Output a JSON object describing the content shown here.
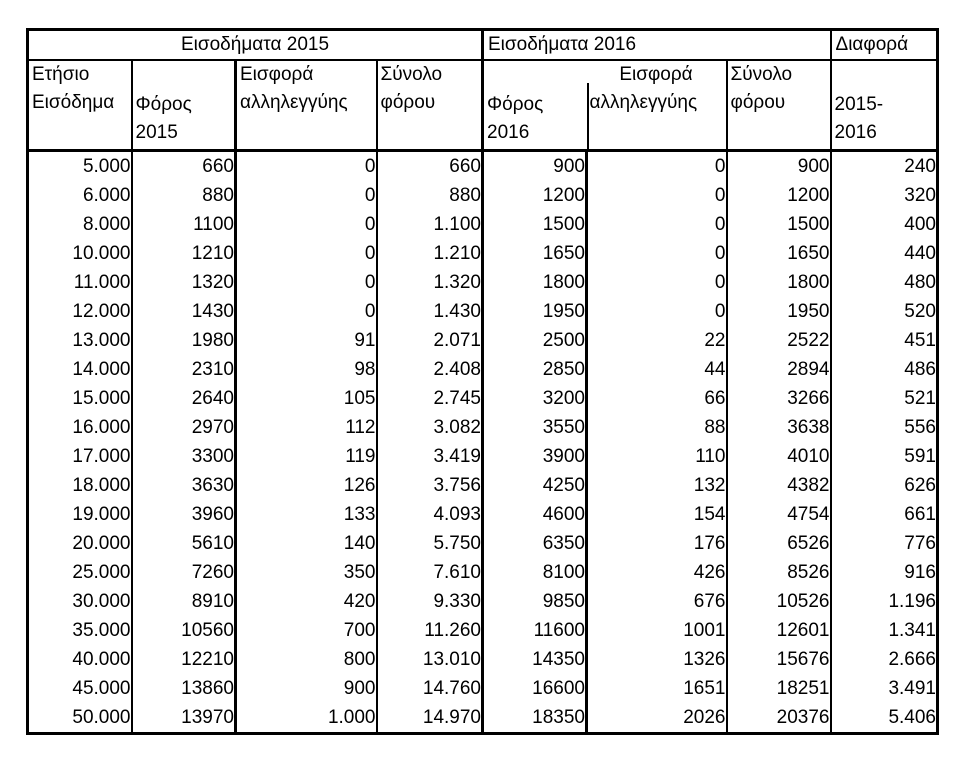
{
  "app": {
    "background_color": "#ffffff",
    "border_color": "#000000",
    "text_color": "#000000"
  },
  "table": {
    "group_headers": [
      {
        "label": "Εισοδήματα 2015"
      },
      {
        "label": "Εισοδήματα 2016"
      },
      {
        "label": "Διαφορά"
      }
    ],
    "columns": [
      {
        "line1": "Ετήσιο",
        "line2": "Εισόδημα"
      },
      {
        "line1": "Φόρος",
        "line2": "2015"
      },
      {
        "line1": "Εισφορά",
        "line2": "αλληλεγγύης"
      },
      {
        "line1": "Σύνολο",
        "line2": "φόρου"
      },
      {
        "line1": "Φόρος",
        "line2": "2016"
      },
      {
        "line1": "Εισφορά",
        "line2": "αλληλεγγύης"
      },
      {
        "line1": "Σύνολο",
        "line2": "φόρου"
      },
      {
        "line1": "2015-",
        "line2": "2016"
      }
    ],
    "rows": [
      [
        "5.000",
        "660",
        "0",
        "660",
        "900",
        "0",
        "900",
        "240"
      ],
      [
        "6.000",
        "880",
        "0",
        "880",
        "1200",
        "0",
        "1200",
        "320"
      ],
      [
        "8.000",
        "1100",
        "0",
        "1.100",
        "1500",
        "0",
        "1500",
        "400"
      ],
      [
        "10.000",
        "1210",
        "0",
        "1.210",
        "1650",
        "0",
        "1650",
        "440"
      ],
      [
        "11.000",
        "1320",
        "0",
        "1.320",
        "1800",
        "0",
        "1800",
        "480"
      ],
      [
        "12.000",
        "1430",
        "0",
        "1.430",
        "1950",
        "0",
        "1950",
        "520"
      ],
      [
        "13.000",
        "1980",
        "91",
        "2.071",
        "2500",
        "22",
        "2522",
        "451"
      ],
      [
        "14.000",
        "2310",
        "98",
        "2.408",
        "2850",
        "44",
        "2894",
        "486"
      ],
      [
        "15.000",
        "2640",
        "105",
        "2.745",
        "3200",
        "66",
        "3266",
        "521"
      ],
      [
        "16.000",
        "2970",
        "112",
        "3.082",
        "3550",
        "88",
        "3638",
        "556"
      ],
      [
        "17.000",
        "3300",
        "119",
        "3.419",
        "3900",
        "110",
        "4010",
        "591"
      ],
      [
        "18.000",
        "3630",
        "126",
        "3.756",
        "4250",
        "132",
        "4382",
        "626"
      ],
      [
        "19.000",
        "3960",
        "133",
        "4.093",
        "4600",
        "154",
        "4754",
        "661"
      ],
      [
        "20.000",
        "5610",
        "140",
        "5.750",
        "6350",
        "176",
        "6526",
        "776"
      ],
      [
        "25.000",
        "7260",
        "350",
        "7.610",
        "8100",
        "426",
        "8526",
        "916"
      ],
      [
        "30.000",
        "8910",
        "420",
        "9.330",
        "9850",
        "676",
        "10526",
        "1.196"
      ],
      [
        "35.000",
        "10560",
        "700",
        "11.260",
        "11600",
        "1001",
        "12601",
        "1.341"
      ],
      [
        "40.000",
        "12210",
        "800",
        "13.010",
        "14350",
        "1326",
        "15676",
        "2.666"
      ],
      [
        "45.000",
        "13860",
        "900",
        "14.760",
        "16600",
        "1651",
        "18251",
        "3.491"
      ],
      [
        "50.000",
        "13970",
        "1.000",
        "14.970",
        "18350",
        "2026",
        "20376",
        "5.406"
      ]
    ]
  }
}
